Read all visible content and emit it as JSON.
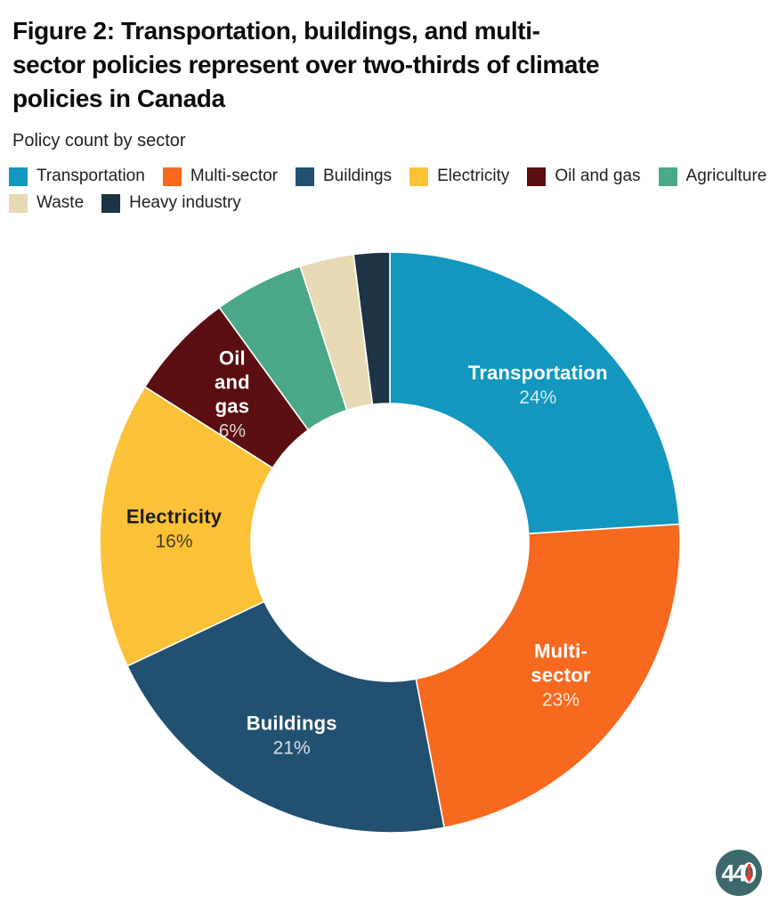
{
  "header": {
    "title": "Figure 2: Transportation, buildings, and multi-sector policies represent over two-thirds of climate policies in Canada",
    "title_lines": [
      "Figure 2: Transportation, buildings, and multi-",
      "sector policies represent over two-thirds of climate",
      "policies in Canada"
    ],
    "subtitle": "Policy count by sector"
  },
  "chart_data": {
    "type": "pie",
    "subtype": "donut",
    "title": "Policy count by sector",
    "unit": "percent of climate policies",
    "start_angle_deg": 0,
    "direction": "clockwise",
    "inner_radius_ratio": 0.48,
    "legend_position": "top",
    "slices": [
      {
        "label": "Transportation",
        "value_pct": 24,
        "color": "#1397bf",
        "text_color": "#ffffff",
        "label_lines": [
          "Transportation"
        ],
        "show_label": true
      },
      {
        "label": "Multi-sector",
        "value_pct": 23,
        "color": "#f6691e",
        "text_color": "#ffffff",
        "label_lines": [
          "Multi-",
          "sector"
        ],
        "show_label": true
      },
      {
        "label": "Buildings",
        "value_pct": 21,
        "color": "#215070",
        "text_color": "#ffffff",
        "label_lines": [
          "Buildings"
        ],
        "show_label": true
      },
      {
        "label": "Electricity",
        "value_pct": 16,
        "color": "#fcc237",
        "text_color": "#1d1d1b",
        "label_lines": [
          "Electricity"
        ],
        "show_label": true
      },
      {
        "label": "Oil and gas",
        "value_pct": 6,
        "color": "#5a0e11",
        "text_color": "#ffffff",
        "label_lines": [
          "Oil",
          "and",
          "gas"
        ],
        "show_label": true
      },
      {
        "label": "Agriculture",
        "value_pct": 5,
        "color": "#4ba888",
        "text_color": "#ffffff",
        "label_lines": [
          "Agriculture"
        ],
        "show_label": false
      },
      {
        "label": "Waste",
        "value_pct": 3,
        "color": "#e8dab4",
        "text_color": "#1d1d1b",
        "label_lines": [
          "Waste"
        ],
        "show_label": false
      },
      {
        "label": "Heavy industry",
        "value_pct": 2,
        "color": "#1c3444",
        "text_color": "#ffffff",
        "label_lines": [
          "Heavy industry"
        ],
        "show_label": false
      }
    ]
  },
  "logo": {
    "text": "440",
    "text_44": "44",
    "circle_color": "#3b696c",
    "zero_color": "#ffffff",
    "arrow_color": "#e23b2e"
  }
}
